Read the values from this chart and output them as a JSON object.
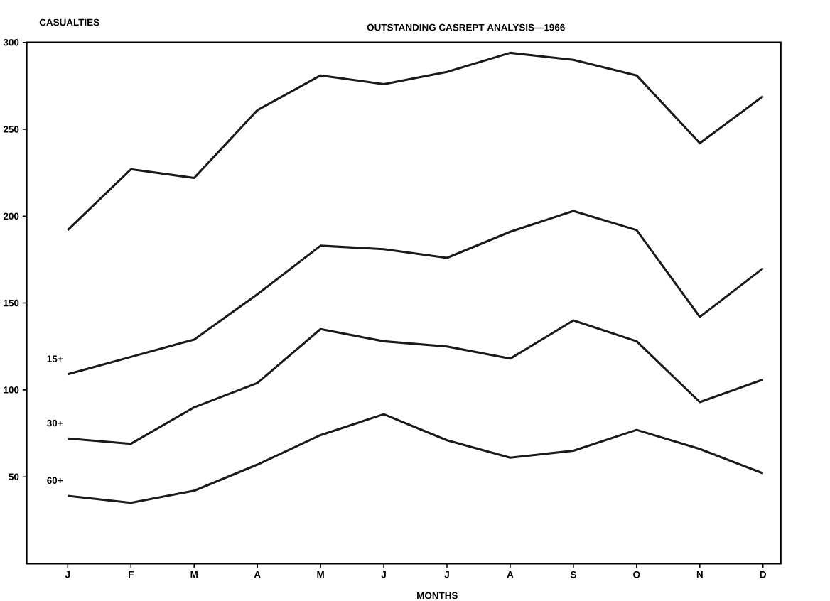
{
  "chart_data": {
    "type": "line",
    "title": "OUTSTANDING CASREPT ANALYSIS—1966",
    "xlabel": "MONTHS",
    "ylabel": "CASUALTIES",
    "categories": [
      "J",
      "F",
      "M",
      "A",
      "M",
      "J",
      "J",
      "A",
      "S",
      "O",
      "N",
      "D"
    ],
    "ylim": [
      0,
      300
    ],
    "yticks": [
      50,
      100,
      150,
      200,
      250,
      300
    ],
    "grid": false,
    "legend": false,
    "marker": "none",
    "line_style": "solid",
    "series": [
      {
        "color": "#1a1a1a",
        "values": [
          192,
          227,
          222,
          261,
          281,
          276,
          283,
          294,
          290,
          281,
          242,
          269
        ]
      },
      {
        "name": "15+",
        "color": "#1a1a1a",
        "values": [
          109,
          119,
          129,
          155,
          183,
          181,
          176,
          191,
          203,
          192,
          142,
          170
        ]
      },
      {
        "name": "30+",
        "color": "#1a1a1a",
        "values": [
          72,
          69,
          90,
          104,
          135,
          128,
          125,
          118,
          140,
          128,
          93,
          106
        ]
      },
      {
        "name": "60+",
        "color": "#1a1a1a",
        "values": [
          39,
          35,
          42,
          57,
          74,
          86,
          71,
          61,
          65,
          77,
          66,
          52
        ]
      }
    ]
  }
}
